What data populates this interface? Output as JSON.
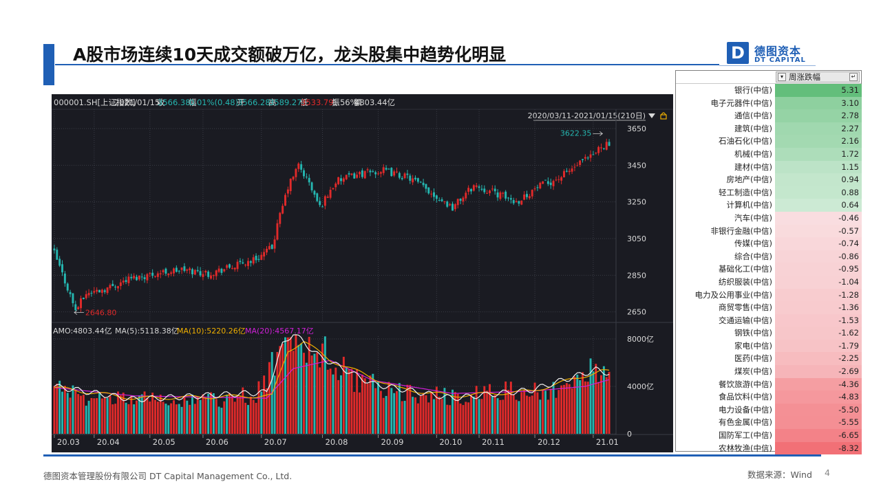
{
  "title": "A股市场连续10天成交额破万亿，龙头股集中趋势化明显",
  "logo": {
    "mark": "D",
    "cn": "德图资本",
    "en": "DT CAPITAL"
  },
  "quote_bar": {
    "code": "000001.SH[上证指数]",
    "date": "2021/01/15",
    "close_label": "收",
    "close": "3566.38",
    "change_label": "幅",
    "change": "0.01%(0.48)",
    "open_label": "开",
    "open": "3566.28",
    "high_label": "高",
    "high": "3589.27",
    "low_label": "低",
    "low": "3533.79",
    "amp_label": "振",
    "amp": "1.56%",
    "amount_label": "额",
    "amount": "4803.44亿"
  },
  "range_label": "2020/03/11-2021/01/15(210日)",
  "volume_bar": {
    "amo": "AMO:4803.44亿",
    "ma5": "MA(5):5118.38亿",
    "ma10": "MA(10):5220.26亿",
    "ma20": "MA(20):4567.17亿"
  },
  "colors": {
    "up": "#e02a2a",
    "down": "#25b6b0",
    "ma5": "#f0f0f0",
    "ma10": "#f0b000",
    "ma20": "#d020d8",
    "accent": "#1f5fb5"
  },
  "chart_data": [
    {
      "type": "candlestick",
      "title": "000001.SH[上证指数]",
      "x_ticks": [
        "20.03",
        "20.04",
        "20.05",
        "20.06",
        "20.07",
        "20.08",
        "20.09",
        "20.10",
        "20.11",
        "20.12",
        "21.01"
      ],
      "y_ticks": [
        "3650",
        "3450",
        "3250",
        "3050",
        "2850",
        "2650"
      ],
      "ylim": [
        2600,
        3680
      ],
      "annotations": [
        {
          "text": "3622.35",
          "value": 3622.35,
          "x": "2021/01/13"
        },
        {
          "text": "2646.80",
          "value": 2646.8,
          "x": "2020/03/19"
        }
      ],
      "series": [
        {
          "name": "close_approx",
          "x_start": "2020/03/11",
          "days": 210,
          "keyframes": [
            [
              0,
              2970
            ],
            [
              5,
              2780
            ],
            [
              8,
              2660
            ],
            [
              12,
              2750
            ],
            [
              20,
              2780
            ],
            [
              28,
              2830
            ],
            [
              38,
              2860
            ],
            [
              48,
              2880
            ],
            [
              58,
              2860
            ],
            [
              68,
              2900
            ],
            [
              76,
              2940
            ],
            [
              82,
              3000
            ],
            [
              84,
              3120
            ],
            [
              88,
              3330
            ],
            [
              92,
              3450
            ],
            [
              96,
              3350
            ],
            [
              100,
              3220
            ],
            [
              106,
              3360
            ],
            [
              114,
              3400
            ],
            [
              124,
              3420
            ],
            [
              134,
              3380
            ],
            [
              140,
              3320
            ],
            [
              150,
              3220
            ],
            [
              158,
              3340
            ],
            [
              166,
              3300
            ],
            [
              174,
              3250
            ],
            [
              182,
              3330
            ],
            [
              190,
              3380
            ],
            [
              198,
              3460
            ],
            [
              203,
              3500
            ],
            [
              206,
              3560
            ],
            [
              209,
              3566
            ]
          ]
        }
      ]
    },
    {
      "type": "bar",
      "title": "AMO",
      "y_ticks": [
        "8000亿",
        "4000亿",
        "0"
      ],
      "ylim": [
        0,
        8000
      ],
      "series": [
        {
          "name": "AMO",
          "keyframes": [
            [
              0,
              3900
            ],
            [
              10,
              3100
            ],
            [
              30,
              2900
            ],
            [
              60,
              2800
            ],
            [
              76,
              3300
            ],
            [
              84,
              6500
            ],
            [
              88,
              9500
            ],
            [
              96,
              7000
            ],
            [
              104,
              6500
            ],
            [
              114,
              4500
            ],
            [
              130,
              3500
            ],
            [
              150,
              3100
            ],
            [
              170,
              3600
            ],
            [
              186,
              3700
            ],
            [
              198,
              4200
            ],
            [
              204,
              5600
            ],
            [
              209,
              4803
            ]
          ]
        },
        {
          "name": "MA(5)",
          "keyframes": [
            [
              0,
              4000
            ],
            [
              30,
              2900
            ],
            [
              80,
              3500
            ],
            [
              86,
              7500
            ],
            [
              90,
              8500
            ],
            [
              100,
              6500
            ],
            [
              120,
              4200
            ],
            [
              150,
              3000
            ],
            [
              180,
              3700
            ],
            [
              204,
              5400
            ],
            [
              209,
              5118
            ]
          ]
        },
        {
          "name": "MA(10)",
          "keyframes": [
            [
              0,
              3900
            ],
            [
              30,
              3000
            ],
            [
              82,
              3200
            ],
            [
              88,
              7000
            ],
            [
              94,
              7800
            ],
            [
              104,
              6200
            ],
            [
              130,
              3800
            ],
            [
              150,
              3200
            ],
            [
              180,
              3600
            ],
            [
              206,
              5300
            ],
            [
              209,
              5220
            ]
          ]
        },
        {
          "name": "MA(20)",
          "keyframes": [
            [
              0,
              3900
            ],
            [
              30,
              3200
            ],
            [
              80,
              3000
            ],
            [
              90,
              5500
            ],
            [
              104,
              6200
            ],
            [
              120,
              4500
            ],
            [
              150,
              3400
            ],
            [
              180,
              3600
            ],
            [
              200,
              4000
            ],
            [
              209,
              4567
            ]
          ]
        }
      ]
    },
    {
      "type": "table",
      "title": "周涨跌幅",
      "header": "周涨跌幅",
      "rows": [
        {
          "name": "银行(中信)",
          "value": 5.31,
          "display": "5.31"
        },
        {
          "name": "电子元器件(中信)",
          "value": 3.1,
          "display": "3.10"
        },
        {
          "name": "通信(中信)",
          "value": 2.78,
          "display": "2.78"
        },
        {
          "name": "建筑(中信)",
          "value": 2.27,
          "display": "2.27"
        },
        {
          "name": "石油石化(中信)",
          "value": 2.16,
          "display": "2.16"
        },
        {
          "name": "机械(中信)",
          "value": 1.72,
          "display": "1.72"
        },
        {
          "name": "建材(中信)",
          "value": 1.15,
          "display": "1.15"
        },
        {
          "name": "房地产(中信)",
          "value": 0.94,
          "display": "0.94"
        },
        {
          "name": "轻工制造(中信)",
          "value": 0.88,
          "display": "0.88"
        },
        {
          "name": "计算机(中信)",
          "value": 0.64,
          "display": "0.64"
        },
        {
          "name": "汽车(中信)",
          "value": -0.46,
          "display": "-0.46"
        },
        {
          "name": "非银行金融(中信)",
          "value": -0.57,
          "display": "-0.57"
        },
        {
          "name": "传媒(中信)",
          "value": -0.74,
          "display": "-0.74"
        },
        {
          "name": "综合(中信)",
          "value": -0.86,
          "display": "-0.86"
        },
        {
          "name": "基础化工(中信)",
          "value": -0.95,
          "display": "-0.95"
        },
        {
          "name": "纺织服装(中信)",
          "value": -1.04,
          "display": "-1.04"
        },
        {
          "name": "电力及公用事业(中信)",
          "value": -1.28,
          "display": "-1.28"
        },
        {
          "name": "商贸零售(中信)",
          "value": -1.36,
          "display": "-1.36"
        },
        {
          "name": "交通运输(中信)",
          "value": -1.53,
          "display": "-1.53"
        },
        {
          "name": "钢铁(中信)",
          "value": -1.62,
          "display": "-1.62"
        },
        {
          "name": "家电(中信)",
          "value": -1.79,
          "display": "-1.79"
        },
        {
          "name": "医药(中信)",
          "value": -2.25,
          "display": "-2.25"
        },
        {
          "name": "煤炭(中信)",
          "value": -2.69,
          "display": "-2.69"
        },
        {
          "name": "餐饮旅游(中信)",
          "value": -4.36,
          "display": "-4.36"
        },
        {
          "name": "食品饮料(中信)",
          "value": -4.83,
          "display": "-4.83"
        },
        {
          "name": "电力设备(中信)",
          "value": -5.5,
          "display": "-5.50"
        },
        {
          "name": "有色金属(中信)",
          "value": -5.55,
          "display": "-5.55"
        },
        {
          "name": "国防军工(中信)",
          "value": -6.65,
          "display": "-6.65"
        },
        {
          "name": "农林牧渔(中信)",
          "value": -8.32,
          "display": "-8.32"
        }
      ]
    }
  ],
  "footer": {
    "company": "德图资本管理股份有限公司  DT Capital  Management  Co., Ltd.",
    "source": "数据来源：Wind",
    "page": "4"
  }
}
